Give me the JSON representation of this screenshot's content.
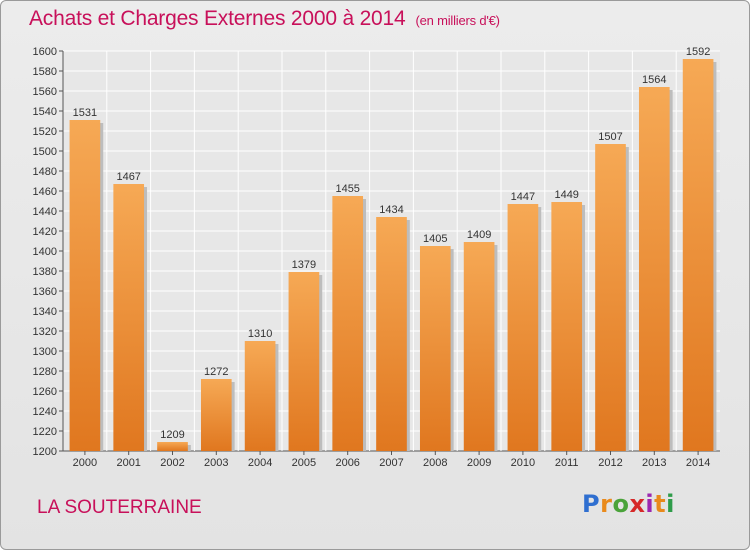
{
  "header": {
    "title": "Achats et Charges Externes 2000 à 2014",
    "subtitle": "(en milliers d'€)"
  },
  "footer": {
    "place": "LA SOUTERRAINE",
    "logo": {
      "letters": [
        "P",
        "r",
        "o",
        "x",
        "i",
        "t",
        "i"
      ],
      "colors": [
        "#2f6fd0",
        "#e98a1c",
        "#4aa33a",
        "#d62828",
        "#9c27b0",
        "#e98a1c",
        "#2f9c4a"
      ]
    }
  },
  "colors": {
    "bar_top": "#f6a955",
    "bar_bottom": "#e0771f",
    "title": "#c8105a"
  },
  "chart_data": {
    "type": "bar",
    "categories": [
      "2000",
      "2001",
      "2002",
      "2003",
      "2004",
      "2005",
      "2006",
      "2007",
      "2008",
      "2009",
      "2010",
      "2011",
      "2012",
      "2013",
      "2014"
    ],
    "values": [
      1531,
      1467,
      1209,
      1272,
      1310,
      1379,
      1455,
      1434,
      1405,
      1409,
      1447,
      1449,
      1507,
      1564,
      1592
    ],
    "ylim": [
      1200,
      1600
    ],
    "yticks": [
      1200,
      1220,
      1240,
      1260,
      1280,
      1300,
      1320,
      1340,
      1360,
      1380,
      1400,
      1420,
      1440,
      1460,
      1480,
      1500,
      1520,
      1540,
      1560,
      1580,
      1600
    ],
    "grid": true,
    "xlabel": "",
    "ylabel": ""
  }
}
